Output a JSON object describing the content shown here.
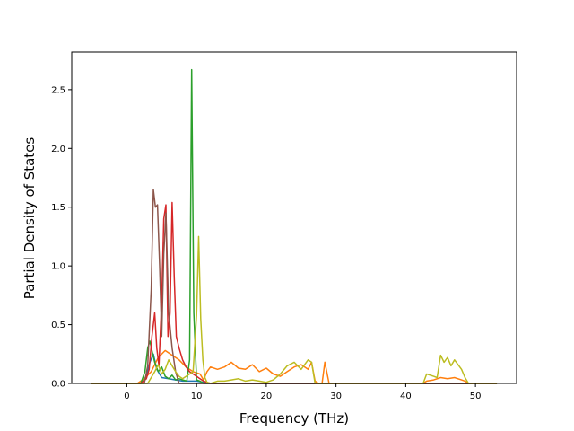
{
  "chart_data": {
    "type": "line",
    "title": "",
    "xlabel": "Frequency (THz)",
    "ylabel": "Partial Density of States",
    "xlim": [
      -7.9,
      55.9
    ],
    "ylim": [
      0.0,
      2.82
    ],
    "x_ticks": [
      0,
      10,
      20,
      30,
      40,
      50
    ],
    "y_ticks": [
      0.0,
      0.5,
      1.0,
      1.5,
      2.0,
      2.5
    ],
    "x_tick_labels": [
      "0",
      "10",
      "20",
      "30",
      "40",
      "50"
    ],
    "y_tick_labels": [
      "0.0",
      "0.5",
      "1.0",
      "1.5",
      "2.0",
      "2.5"
    ],
    "grid": false,
    "legend": "none",
    "series": [
      {
        "color": "#1f77b4",
        "x": [
          -5,
          2.0,
          2.8,
          3.3,
          3.8,
          4.3,
          5.0,
          6.0,
          7.0,
          8.0,
          9.0,
          10.0,
          11.0,
          12.0,
          53
        ],
        "y": [
          0,
          0,
          0.06,
          0.18,
          0.25,
          0.12,
          0.05,
          0.04,
          0.03,
          0.02,
          0.02,
          0.02,
          0.01,
          0,
          0
        ]
      },
      {
        "color": "#ff7f0e",
        "x": [
          -5,
          1.5,
          2.5,
          3.5,
          4.5,
          5.5,
          6.5,
          7.5,
          8.5,
          9.5,
          10.5,
          11.0,
          11.5,
          12.0,
          13.0,
          14.0,
          15.0,
          16.0,
          17.0,
          18.0,
          19.0,
          20.0,
          21.0,
          22.0,
          23.0,
          24.0,
          25.0,
          26.0,
          26.5,
          27.0,
          27.5,
          28.0,
          28.4,
          28.6,
          29.0,
          42.5,
          43.0,
          44.0,
          45.0,
          46.0,
          47.0,
          48.0,
          48.5,
          49.0,
          53
        ],
        "y": [
          0,
          0,
          0.04,
          0.1,
          0.22,
          0.28,
          0.24,
          0.2,
          0.14,
          0.1,
          0.08,
          0.03,
          0.1,
          0.14,
          0.12,
          0.14,
          0.18,
          0.13,
          0.12,
          0.16,
          0.1,
          0.13,
          0.08,
          0.06,
          0.1,
          0.14,
          0.16,
          0.12,
          0.18,
          0.02,
          0,
          0,
          0.18,
          0.12,
          0,
          0,
          0.02,
          0.03,
          0.05,
          0.04,
          0.05,
          0.03,
          0.02,
          0,
          0
        ]
      },
      {
        "color": "#2ca02c",
        "x": [
          -5,
          2.0,
          2.6,
          3.0,
          3.3,
          3.6,
          4.0,
          4.5,
          5.0,
          5.5,
          6.0,
          6.5,
          7.0,
          7.5,
          8.0,
          8.6,
          9.0,
          9.3,
          9.6,
          10.0,
          10.5,
          11.0,
          53
        ],
        "y": [
          0,
          0,
          0.1,
          0.3,
          0.36,
          0.28,
          0.18,
          0.1,
          0.14,
          0.06,
          0.04,
          0.07,
          0.03,
          0.04,
          0.03,
          0.02,
          0.2,
          2.67,
          0.6,
          0.03,
          0.02,
          0,
          0
        ]
      },
      {
        "color": "#d62728",
        "x": [
          -5,
          2.0,
          2.8,
          3.2,
          3.6,
          4.0,
          4.3,
          4.6,
          5.0,
          5.3,
          5.6,
          5.9,
          6.2,
          6.5,
          6.8,
          7.1,
          7.5,
          8.0,
          8.5,
          9.0,
          9.5,
          10.0,
          10.5,
          11.0,
          12.0,
          53
        ],
        "y": [
          0,
          0,
          0.04,
          0.12,
          0.4,
          0.6,
          0.3,
          0.15,
          0.7,
          1.4,
          1.52,
          0.4,
          0.6,
          1.54,
          0.9,
          0.4,
          0.3,
          0.2,
          0.14,
          0.1,
          0.08,
          0.06,
          0.04,
          0.02,
          0,
          0
        ]
      },
      {
        "color": "#8c564b",
        "x": [
          -5,
          2.5,
          3.0,
          3.5,
          3.8,
          4.1,
          4.4,
          4.7,
          5.0,
          5.3,
          5.6,
          6.0,
          6.5,
          7.0,
          7.5,
          53
        ],
        "y": [
          0,
          0,
          0.15,
          0.8,
          1.65,
          1.5,
          1.52,
          1.0,
          0.4,
          1.1,
          1.45,
          0.6,
          0.3,
          0.1,
          0,
          0
        ]
      },
      {
        "color": "#bcbd22",
        "x": [
          -5,
          3.0,
          3.5,
          4.0,
          4.5,
          5.0,
          5.5,
          6.0,
          6.5,
          7.0,
          7.5,
          8.0,
          8.5,
          9.0,
          9.5,
          10.0,
          10.3,
          10.6,
          10.9,
          11.2,
          11.5,
          12.0,
          13.0,
          14.0,
          15.0,
          16.0,
          17.0,
          18.0,
          19.0,
          20.0,
          21.0,
          22.0,
          23.0,
          24.0,
          25.0,
          26.0,
          26.5,
          27.0,
          28.0,
          42.5,
          43.0,
          44.0,
          44.5,
          45.0,
          45.5,
          46.0,
          46.5,
          47.0,
          47.5,
          48.0,
          48.5,
          49.0,
          53
        ],
        "y": [
          0,
          0,
          0.05,
          0.1,
          0.16,
          0.08,
          0.12,
          0.2,
          0.15,
          0.1,
          0.06,
          0.04,
          0.06,
          0.08,
          0.1,
          0.58,
          1.25,
          0.55,
          0.2,
          0.05,
          0.01,
          0,
          0.02,
          0.02,
          0.03,
          0.04,
          0.02,
          0.03,
          0.02,
          0.01,
          0.03,
          0.08,
          0.15,
          0.18,
          0.12,
          0.2,
          0.18,
          0,
          0,
          0,
          0.08,
          0.06,
          0.05,
          0.24,
          0.18,
          0.22,
          0.15,
          0.2,
          0.16,
          0.12,
          0.05,
          0,
          0
        ]
      }
    ]
  }
}
